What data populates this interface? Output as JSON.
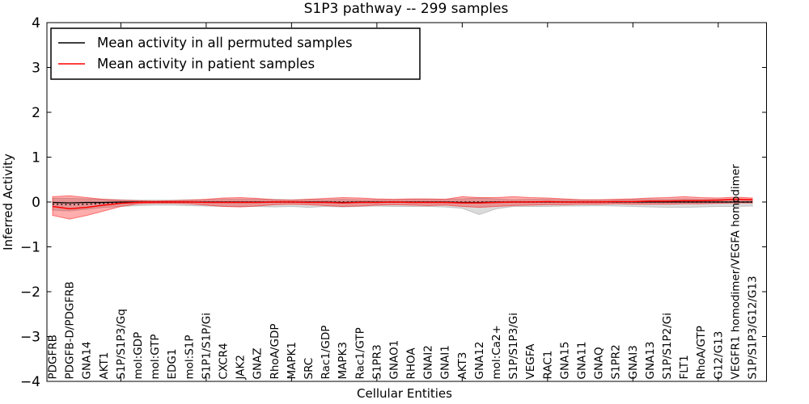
{
  "chart_data": {
    "type": "line",
    "title": "S1P3 pathway -- 299 samples",
    "xlabel": "Cellular Entities",
    "ylabel": "Inferred Activity",
    "ylim": [
      -4,
      4
    ],
    "yticks": [
      4,
      3,
      2,
      1,
      0,
      -1,
      -2,
      -3,
      -4
    ],
    "grid": false,
    "legend_position": "upper-left",
    "categories": [
      "PDGFRB",
      "PDGFB-D/PDGFRB",
      "GNA14",
      "AKT1",
      "S1P/S1P3/Gq",
      "mol:GDP",
      "mol:GTP",
      "EDG1",
      "mol:S1P",
      "S1P1/S1P/Gi",
      "CXCR4",
      "JAK2",
      "GNAZ",
      "RhoA/GDP",
      "MAPK1",
      "SRC",
      "Rac1/GDP",
      "MAPK3",
      "Rac1/GTP",
      "S1PR3",
      "GNAO1",
      "RHOA",
      "GNAI2",
      "GNAI1",
      "AKT3",
      "GNA12",
      "mol:Ca2+",
      "S1P/S1P3/Gi",
      "VEGFA",
      "RAC1",
      "GNA15",
      "GNA11",
      "GNAQ",
      "S1PR2",
      "GNAI3",
      "GNA13",
      "S1P/S1P2/Gi",
      "FLT1",
      "RhoA/GTP",
      "G12/G13",
      "VEGFR1 homodimer/VEGFA homodimer",
      "S1P/S1P3/G12/G13"
    ],
    "series": [
      {
        "name": "Mean activity in all permuted samples",
        "color": "#000000",
        "style": "solid",
        "width": 1.3,
        "values": [
          -0.01,
          -0.02,
          -0.01,
          -0.01,
          0,
          0,
          0,
          0,
          0,
          0,
          0,
          0,
          0,
          0,
          0,
          0,
          0,
          -0.01,
          0,
          0,
          0,
          0,
          0,
          0,
          -0.01,
          -0.01,
          0,
          0,
          0,
          0,
          0,
          0,
          0,
          0,
          0,
          0,
          0,
          0,
          0,
          0,
          0,
          0
        ]
      },
      {
        "name": "Mean activity in patient samples",
        "color": "#ff0000",
        "style": "solid",
        "width": 1.5,
        "values": [
          -0.1,
          -0.15,
          -0.12,
          -0.07,
          -0.03,
          -0.01,
          0,
          0,
          0,
          -0.01,
          -0.01,
          -0.01,
          -0.01,
          0,
          0,
          -0.01,
          -0.01,
          -0.02,
          -0.01,
          -0.01,
          0,
          -0.01,
          -0.01,
          -0.01,
          -0.02,
          -0.02,
          -0.01,
          0,
          0,
          0.01,
          0,
          0,
          0,
          0.01,
          0.01,
          0.02,
          0.02,
          0.03,
          0.03,
          0.04,
          0.06,
          0.05
        ]
      },
      {
        "name": "zero-baseline",
        "color": "#000000",
        "style": "dotted",
        "width": 1.4,
        "values": [
          -0.05,
          -0.06,
          -0.05,
          -0.03,
          -0.01,
          0,
          0,
          0,
          0,
          0,
          0,
          0,
          0,
          0,
          0,
          0,
          0,
          0,
          0,
          0,
          0,
          0,
          0,
          0,
          0,
          0,
          0,
          0,
          0,
          0,
          0,
          0,
          0,
          0,
          0,
          0,
          0,
          0,
          0,
          0,
          0,
          0
        ]
      }
    ],
    "bands": [
      {
        "name": "permuted-activity-range",
        "color": "#999999",
        "opacity": 0.35,
        "hi": [
          0.08,
          0.08,
          0.07,
          0.06,
          0.05,
          0.04,
          0.04,
          0.04,
          0.05,
          0.05,
          0.06,
          0.06,
          0.06,
          0.06,
          0.05,
          0.06,
          0.05,
          0.06,
          0.05,
          0.05,
          0.05,
          0.06,
          0.06,
          0.06,
          0.07,
          0.09,
          0.07,
          0.05,
          0.06,
          0.06,
          0.05,
          0.05,
          0.05,
          0.05,
          0.06,
          0.06,
          0.06,
          0.07,
          0.06,
          0.06,
          0.07,
          0.06
        ],
        "lo": [
          -0.18,
          -0.2,
          -0.16,
          -0.12,
          -0.1,
          -0.08,
          -0.07,
          -0.07,
          -0.08,
          -0.09,
          -0.1,
          -0.1,
          -0.1,
          -0.11,
          -0.1,
          -0.12,
          -0.1,
          -0.11,
          -0.1,
          -0.09,
          -0.1,
          -0.1,
          -0.1,
          -0.11,
          -0.14,
          -0.28,
          -0.15,
          -0.1,
          -0.1,
          -0.1,
          -0.09,
          -0.09,
          -0.08,
          -0.09,
          -0.1,
          -0.11,
          -0.12,
          -0.12,
          -0.11,
          -0.1,
          -0.1,
          -0.09
        ]
      },
      {
        "name": "patient-activity-range",
        "color": "#ff0000",
        "opacity": 0.32,
        "hi": [
          0.12,
          0.14,
          0.1,
          0.06,
          0.04,
          0.03,
          0.02,
          0.03,
          0.04,
          0.06,
          0.09,
          0.1,
          0.08,
          0.05,
          0.04,
          0.06,
          0.08,
          0.1,
          0.09,
          0.07,
          0.06,
          0.07,
          0.07,
          0.06,
          0.12,
          0.1,
          0.1,
          0.12,
          0.1,
          0.09,
          0.07,
          0.05,
          0.05,
          0.06,
          0.07,
          0.09,
          0.1,
          0.12,
          0.1,
          0.09,
          0.11,
          0.09
        ],
        "lo": [
          -0.3,
          -0.38,
          -0.3,
          -0.2,
          -0.1,
          -0.04,
          -0.03,
          -0.03,
          -0.04,
          -0.07,
          -0.1,
          -0.11,
          -0.09,
          -0.06,
          -0.05,
          -0.06,
          -0.08,
          -0.1,
          -0.09,
          -0.07,
          -0.06,
          -0.07,
          -0.08,
          -0.07,
          -0.1,
          -0.12,
          -0.1,
          -0.08,
          -0.07,
          -0.06,
          -0.06,
          -0.05,
          -0.05,
          -0.04,
          -0.05,
          -0.05,
          -0.05,
          -0.04,
          -0.04,
          -0.03,
          -0.02,
          -0.02
        ]
      }
    ]
  }
}
